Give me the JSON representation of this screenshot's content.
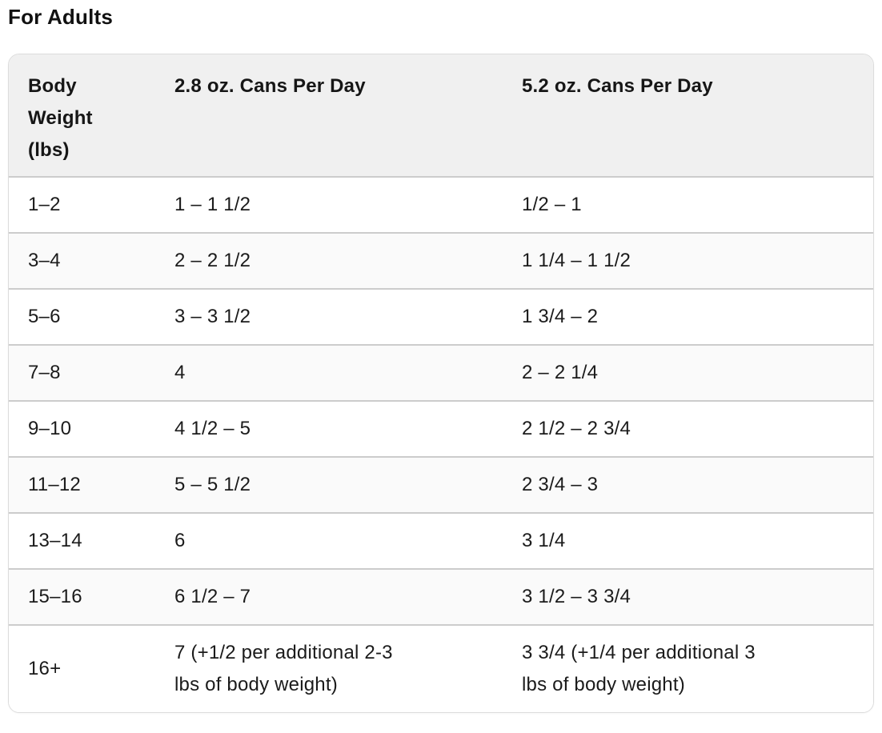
{
  "page": {
    "title": "For Adults"
  },
  "table": {
    "columns": [
      "Body\nWeight\n(lbs)",
      "2.8 oz. Cans Per Day",
      "5.2 oz. Cans Per Day"
    ],
    "rows": [
      [
        "1–2",
        "1 – 1 1/2",
        "1/2 – 1"
      ],
      [
        "3–4",
        "2 – 2 1/2",
        "1 1/4 – 1 1/2"
      ],
      [
        "5–6",
        "3 – 3 1/2",
        "1 3/4 – 2"
      ],
      [
        "7–8",
        "4",
        "2 – 2 1/4"
      ],
      [
        "9–10",
        "4 1/2 – 5",
        "2 1/2 – 2 3/4"
      ],
      [
        "11–12",
        "5 – 5 1/2",
        "2 3/4 – 3"
      ],
      [
        "13–14",
        "6",
        "3 1/4"
      ],
      [
        "15–16",
        "6 1/2 – 7",
        "3 1/2 – 3 3/4"
      ],
      [
        "16+",
        "7 (+1/2 per additional 2-3\nlbs of body weight)",
        "3 3/4 (+1/4 per additional 3\nlbs of body weight)"
      ]
    ],
    "colors": {
      "header_bg": "#f0f0f0",
      "row_alt_bg": "#fafafa",
      "row_bg": "#ffffff",
      "divider": "#cccccc",
      "card_border": "#dcdcdc",
      "text": "#1b1b1b"
    }
  }
}
